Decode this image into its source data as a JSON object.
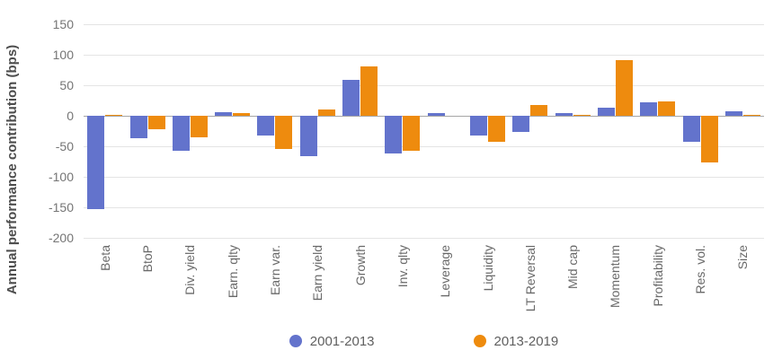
{
  "chart_data": {
    "type": "bar",
    "title": "",
    "xlabel": "",
    "ylabel": "Annual performance contribution (bps)",
    "ylim": [
      -200,
      150
    ],
    "yticks": [
      150,
      100,
      50,
      0,
      -50,
      -100,
      -150,
      -200
    ],
    "grid": true,
    "legend_position": "bottom",
    "categories": [
      "Beta",
      "BtoP",
      "Div. yield",
      "Earn. qlty",
      "Earn var.",
      "Earn yield",
      "Growth",
      "Inv. qlty",
      "Leverage",
      "Liquidity",
      "LT Reversal",
      "Mid cap",
      "Momentum",
      "Profitability",
      "Res. vol.",
      "Size"
    ],
    "series": [
      {
        "name": "2001-2013",
        "color": "#6373cc",
        "values": [
          -153,
          -37,
          -58,
          6,
          -32,
          -66,
          59,
          -61,
          4,
          -33,
          -26,
          5,
          13,
          22,
          -42,
          8
        ]
      },
      {
        "name": "2013-2019",
        "color": "#ee8b0e",
        "values": [
          2,
          -22,
          -35,
          5,
          -55,
          10,
          81,
          -57,
          0,
          -42,
          17,
          1,
          91,
          24,
          -76,
          2
        ]
      }
    ]
  }
}
